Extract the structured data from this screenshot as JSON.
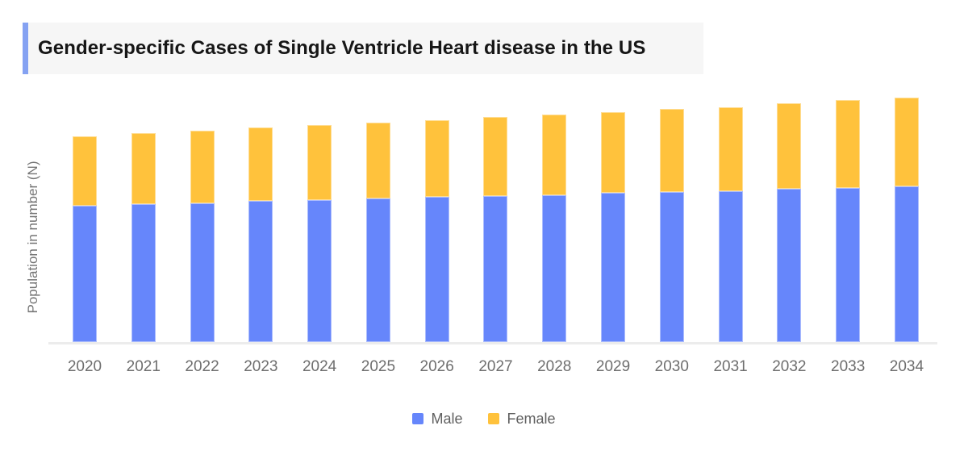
{
  "header": {
    "accent_color": "#85a2f2",
    "background": "#f6f6f6"
  },
  "chart_data": {
    "type": "bar",
    "stacked": true,
    "title": "Gender-specific Cases of Single Ventricle Heart disease in the US",
    "ylabel": "Population in number (N)",
    "xlabel": "",
    "categories": [
      "2020",
      "2021",
      "2022",
      "2023",
      "2024",
      "2025",
      "2026",
      "2027",
      "2028",
      "2029",
      "2030",
      "2031",
      "2032",
      "2033",
      "2034"
    ],
    "series": [
      {
        "name": "Male",
        "color": "#6686fb",
        "values": [
          169,
          171,
          172,
          175,
          176,
          178,
          180,
          181,
          182,
          185,
          186,
          187,
          190,
          191,
          193
        ]
      },
      {
        "name": "Female",
        "color": "#ffc23c",
        "values": [
          86,
          88,
          90,
          91,
          93,
          94,
          95,
          98,
          100,
          100,
          103,
          104,
          106,
          109,
          110
        ]
      }
    ],
    "ylim": [
      0,
      314
    ],
    "grid": false,
    "y_ticks_visible": false,
    "legend_position": "bottom",
    "values_note": "y-axis shows no numeric ticks; series values are relative estimates read from bar heights"
  },
  "colors": {
    "axis_line": "#ececec",
    "x_label_text": "#6e6e6e",
    "y_label_text": "#757575",
    "legend_text": "#606060",
    "title_text": "#161616"
  }
}
